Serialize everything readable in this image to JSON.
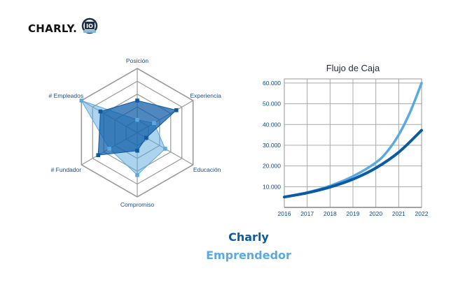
{
  "logo": {
    "text": "CHARLY.",
    "badge_text": "IO"
  },
  "colors": {
    "dark_blue": "#0b5aa5",
    "light_blue": "#5aa9e0",
    "grid": "#a8a8a8"
  },
  "captions": {
    "name": "Charly",
    "role": "Emprendedor"
  },
  "chart_data": [
    {
      "type": "radar",
      "axes": [
        "Posición",
        "Experiencia",
        "Educación",
        "Compromiso",
        "# Fundador",
        "# Empleados"
      ],
      "rmax": 5,
      "rings": 5,
      "series": [
        {
          "color": "#0b5aa5",
          "values": [
            2.5,
            3.5,
            0.8,
            1.4,
            3.5,
            3.3
          ]
        },
        {
          "color": "#5aa9e0",
          "values": [
            1.0,
            1.5,
            2.5,
            3.3,
            2.5,
            5.0
          ]
        }
      ]
    },
    {
      "type": "line",
      "title": "Flujo de Caja",
      "x_ticks": [
        "2016",
        "2017",
        "2018",
        "2019",
        "2020",
        "2021",
        "2022"
      ],
      "y_ticks": [
        "10.000",
        "20.000",
        "30.000",
        "40.000",
        "50.000",
        "60.000"
      ],
      "ylim": [
        0,
        62000
      ],
      "grid": true,
      "series": [
        {
          "color": "#5aa9e0",
          "width": 3.5,
          "x": [
            2016,
            2017,
            2018,
            2019,
            2020,
            2020.5,
            2021,
            2021.5,
            2022
          ],
          "values": [
            5000,
            7200,
            10400,
            15000,
            21600,
            27000,
            35000,
            46000,
            60000
          ]
        },
        {
          "color": "#0b5aa5",
          "width": 4,
          "x": [
            2016,
            2017,
            2018,
            2019,
            2020,
            2021,
            2022
          ],
          "values": [
            5000,
            7000,
            9800,
            13600,
            19000,
            26600,
            37200
          ]
        }
      ]
    }
  ]
}
